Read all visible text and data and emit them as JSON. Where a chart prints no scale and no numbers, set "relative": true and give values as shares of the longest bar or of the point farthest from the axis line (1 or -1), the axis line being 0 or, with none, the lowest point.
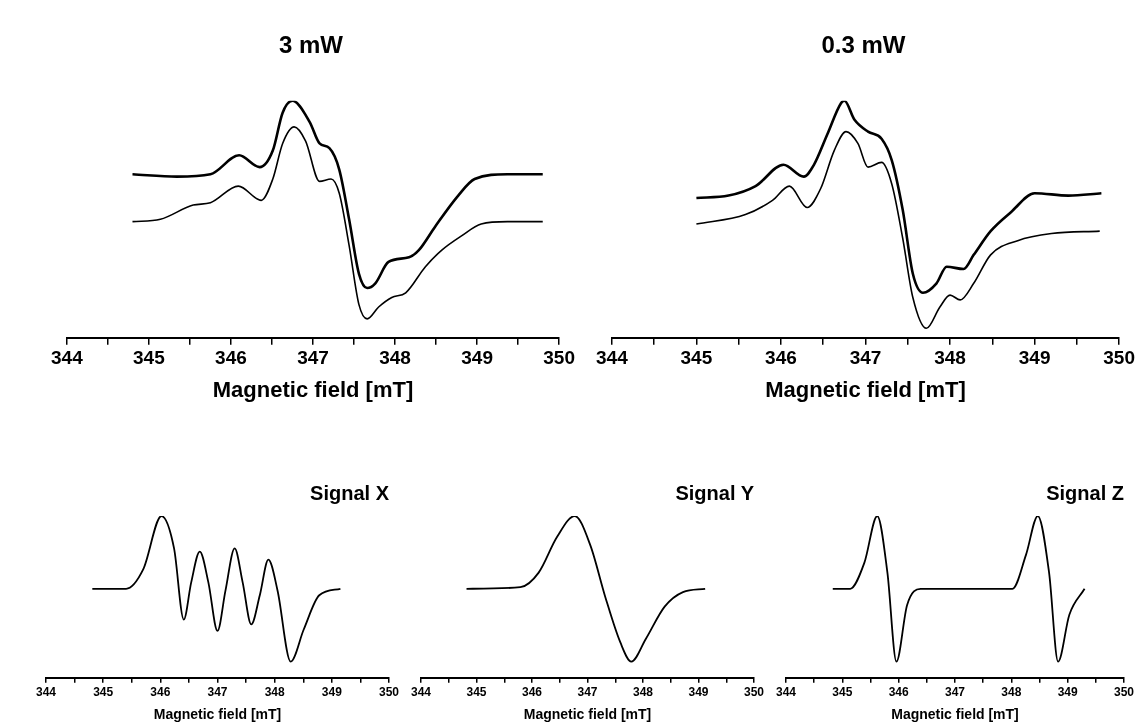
{
  "chart_data": [
    {
      "type": "line",
      "title": "3 mW",
      "xlabel": "Magnetic field [mT]",
      "relative": true,
      "marker": "none",
      "xlim": [
        344,
        350
      ],
      "xticks": [
        344,
        {
          "value": 344.5,
          "label": null
        },
        345,
        {
          "value": 345.5,
          "label": null
        },
        346,
        {
          "value": 346.5,
          "label": null
        },
        347,
        {
          "value": 347.5,
          "label": null
        },
        348,
        {
          "value": 348.5,
          "label": null
        },
        349,
        {
          "value": 349.5,
          "label": null
        },
        350
      ],
      "series": [
        {
          "color": "#000000",
          "x": [
            344.8,
            345.34,
            345.75,
            346.1,
            346.35,
            346.51,
            346.63,
            346.75,
            346.96,
            347.08,
            347.2,
            347.32,
            347.44,
            347.56,
            347.66,
            347.76,
            347.92,
            348.17,
            348.29,
            348.49,
            348.77,
            348.97,
            349.37,
            349.8
          ],
          "values": [
            0.69,
            0.68,
            0.69,
            0.77,
            0.72,
            0.79,
            0.95,
            1.0,
            0.91,
            0.82,
            0.8,
            0.71,
            0.5,
            0.27,
            0.21,
            0.23,
            0.32,
            0.34,
            0.37,
            0.47,
            0.6,
            0.67,
            0.69,
            0.69
          ]
        },
        {
          "color": "#000000",
          "x": [
            344.8,
            345.14,
            345.54,
            345.75,
            346.09,
            346.37,
            346.51,
            346.63,
            346.77,
            346.91,
            347.08,
            347.22,
            347.32,
            347.44,
            347.56,
            347.66,
            347.8,
            347.96,
            348.13,
            348.37,
            348.57,
            348.81,
            349.05,
            349.37,
            349.8
          ],
          "values": [
            0.49,
            0.5,
            0.56,
            0.57,
            0.64,
            0.58,
            0.67,
            0.82,
            0.89,
            0.83,
            0.66,
            0.67,
            0.61,
            0.39,
            0.14,
            0.08,
            0.13,
            0.17,
            0.19,
            0.3,
            0.37,
            0.43,
            0.48,
            0.49,
            0.49
          ]
        }
      ]
    },
    {
      "type": "line",
      "title": "0.3 mW",
      "xlabel": "Magnetic field [mT]",
      "relative": true,
      "marker": "none",
      "xlim": [
        344,
        350
      ],
      "xticks": [
        344,
        {
          "value": 344.5,
          "label": null
        },
        345,
        {
          "value": 345.5,
          "label": null
        },
        346,
        {
          "value": 346.5,
          "label": null
        },
        347,
        {
          "value": 347.5,
          "label": null
        },
        348,
        {
          "value": 348.5,
          "label": null
        },
        349,
        {
          "value": 349.5,
          "label": null
        },
        350
      ],
      "series": [
        {
          "color": "#000000",
          "x": [
            345.0,
            345.38,
            345.7,
            346.03,
            346.27,
            346.39,
            346.55,
            346.71,
            346.75,
            346.87,
            347.03,
            347.19,
            347.31,
            347.44,
            347.56,
            347.68,
            347.84,
            347.96,
            348.16,
            348.28,
            348.48,
            348.72,
            349.0,
            349.4,
            349.79
          ],
          "values": [
            0.59,
            0.6,
            0.64,
            0.73,
            0.68,
            0.73,
            0.86,
            0.99,
            1.0,
            0.92,
            0.87,
            0.84,
            0.75,
            0.54,
            0.27,
            0.19,
            0.23,
            0.3,
            0.29,
            0.35,
            0.45,
            0.53,
            0.61,
            0.6,
            0.61
          ]
        },
        {
          "color": "#000000",
          "x": [
            345.0,
            345.58,
            345.9,
            346.1,
            346.31,
            346.47,
            346.63,
            346.77,
            346.91,
            347.03,
            347.19,
            347.31,
            347.44,
            347.56,
            347.72,
            347.88,
            348.0,
            348.12,
            348.28,
            348.48,
            348.8,
            349.2,
            349.77
          ],
          "values": [
            0.48,
            0.52,
            0.58,
            0.64,
            0.55,
            0.63,
            0.79,
            0.87,
            0.82,
            0.72,
            0.74,
            0.65,
            0.42,
            0.17,
            0.04,
            0.13,
            0.18,
            0.16,
            0.23,
            0.35,
            0.41,
            0.44,
            0.45
          ]
        }
      ]
    },
    {
      "type": "line",
      "title": "Signal X",
      "xlabel": "Magnetic field [mT]",
      "relative": true,
      "marker": "none",
      "xlim": [
        344,
        350
      ],
      "xticks": [
        344,
        {
          "value": 344.5,
          "label": null
        },
        345,
        {
          "value": 345.5,
          "label": null
        },
        346,
        {
          "value": 346.5,
          "label": null
        },
        347,
        {
          "value": 347.5,
          "label": null
        },
        348,
        {
          "value": 348.5,
          "label": null
        },
        349,
        {
          "value": 349.5,
          "label": null
        },
        350
      ],
      "series": [
        {
          "color": "#000000",
          "x": [
            344.81,
            345.4,
            345.7,
            346.02,
            346.24,
            346.41,
            346.54,
            346.69,
            346.84,
            347.0,
            347.14,
            347.3,
            347.44,
            347.59,
            347.74,
            347.89,
            348.05,
            348.28,
            348.51,
            348.78,
            349.15
          ],
          "values": [
            0.55,
            0.55,
            0.67,
            1.0,
            0.8,
            0.36,
            0.59,
            0.78,
            0.59,
            0.29,
            0.54,
            0.8,
            0.59,
            0.33,
            0.51,
            0.73,
            0.54,
            0.1,
            0.3,
            0.51,
            0.55
          ]
        }
      ]
    },
    {
      "type": "line",
      "title": "Signal Y",
      "xlabel": "Magnetic field [mT]",
      "relative": true,
      "marker": "none",
      "xlim": [
        344,
        350
      ],
      "xticks": [
        344,
        {
          "value": 344.5,
          "label": null
        },
        345,
        {
          "value": 345.5,
          "label": null
        },
        346,
        {
          "value": 346.5,
          "label": null
        },
        347,
        {
          "value": 347.5,
          "label": null
        },
        348,
        {
          "value": 348.5,
          "label": null
        },
        349,
        {
          "value": 349.5,
          "label": null
        },
        350
      ],
      "series": [
        {
          "color": "#000000",
          "x": [
            344.82,
            345.79,
            346.12,
            346.45,
            346.77,
            347.05,
            347.32,
            347.59,
            347.79,
            348.05,
            348.39,
            348.72,
            349.12
          ],
          "values": [
            0.55,
            0.56,
            0.65,
            0.87,
            1.0,
            0.82,
            0.5,
            0.22,
            0.1,
            0.24,
            0.44,
            0.53,
            0.55
          ]
        }
      ]
    },
    {
      "type": "line",
      "title": "Signal Z",
      "xlabel": "Magnetic field [mT]",
      "relative": true,
      "marker": "none",
      "xlim": [
        344,
        350
      ],
      "xticks": [
        344,
        {
          "value": 344.5,
          "label": null
        },
        345,
        {
          "value": 345.5,
          "label": null
        },
        346,
        {
          "value": 346.5,
          "label": null
        },
        347,
        {
          "value": 347.5,
          "label": null
        },
        348,
        {
          "value": 348.5,
          "label": null
        },
        349,
        {
          "value": 349.5,
          "label": null
        },
        350
      ],
      "series": [
        {
          "color": "#000000",
          "x": [
            344.83,
            345.14,
            345.39,
            345.62,
            345.8,
            345.96,
            346.15,
            346.39,
            348.02,
            348.26,
            348.47,
            348.67,
            348.83,
            349.03,
            349.3
          ],
          "values": [
            0.55,
            0.55,
            0.71,
            1.0,
            0.65,
            0.1,
            0.45,
            0.55,
            0.55,
            0.76,
            1.0,
            0.65,
            0.1,
            0.39,
            0.55
          ]
        }
      ]
    }
  ]
}
